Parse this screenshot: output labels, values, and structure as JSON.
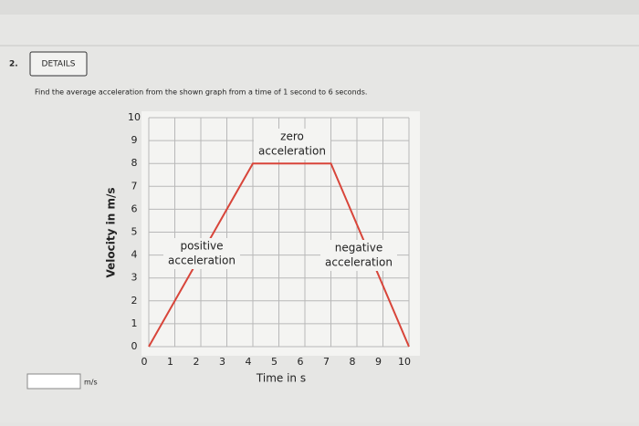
{
  "question_number": "2.",
  "button": "DETAILS",
  "prompt": "Find the average acceleration from the shown graph from a time of 1 second to 6 seconds.",
  "answer_unit": "m/s",
  "chart_data": {
    "type": "line",
    "x": [
      0,
      4,
      7,
      10
    ],
    "values": [
      0,
      8,
      8,
      0
    ],
    "color": "#d8453a",
    "xlabel": "Time in s",
    "ylabel": "Velocity in m/s",
    "xlim": [
      0,
      10
    ],
    "ylim": [
      0,
      10
    ],
    "xticks": [
      0,
      1,
      2,
      3,
      4,
      5,
      6,
      7,
      8,
      9,
      10
    ],
    "yticks": [
      0,
      1,
      2,
      3,
      4,
      5,
      6,
      7,
      8,
      9,
      10
    ],
    "grid": true,
    "annotations": [
      [
        "zero",
        "acceleration"
      ],
      [
        "positive",
        "acceleration"
      ],
      [
        "negative",
        "acceleration"
      ]
    ]
  }
}
